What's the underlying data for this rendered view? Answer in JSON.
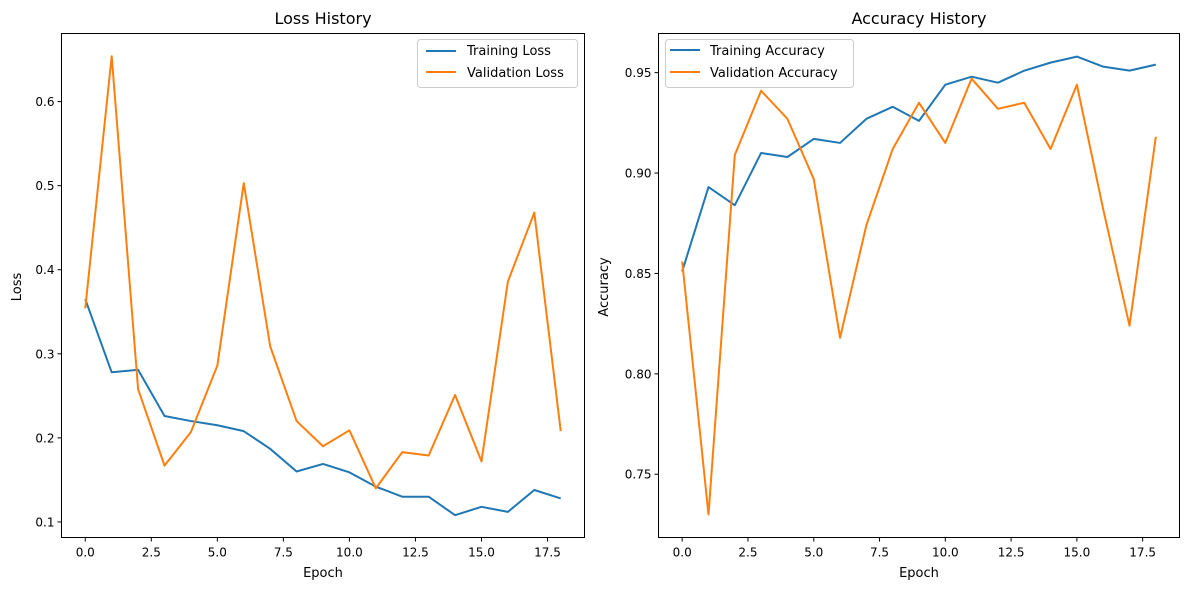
{
  "chart_data": [
    {
      "type": "line",
      "title": "Loss History",
      "xlabel": "Epoch",
      "ylabel": "Loss",
      "xlim": [
        -0.9,
        18.9
      ],
      "ylim": [
        0.0815,
        0.681
      ],
      "xticks": [
        0.0,
        2.5,
        5.0,
        7.5,
        10.0,
        12.5,
        15.0,
        17.5
      ],
      "xtick_labels": [
        "0.0",
        "2.5",
        "5.0",
        "7.5",
        "10.0",
        "12.5",
        "15.0",
        "17.5"
      ],
      "yticks": [
        0.1,
        0.2,
        0.3,
        0.4,
        0.5,
        0.6
      ],
      "ytick_labels": [
        "0.1",
        "0.2",
        "0.3",
        "0.4",
        "0.5",
        "0.6"
      ],
      "grid": false,
      "legend": "top-right",
      "x": [
        0,
        1,
        2,
        3,
        4,
        5,
        6,
        7,
        8,
        9,
        10,
        11,
        12,
        13,
        14,
        15,
        16,
        17,
        18
      ],
      "series": [
        {
          "name": "Training Loss",
          "color": "#1f77b4",
          "values": [
            0.365,
            0.278,
            0.281,
            0.226,
            0.22,
            0.215,
            0.208,
            0.187,
            0.16,
            0.169,
            0.159,
            0.142,
            0.13,
            0.13,
            0.108,
            0.118,
            0.112,
            0.138,
            0.128
          ]
        },
        {
          "name": "Validation Loss",
          "color": "#ff7f0e",
          "values": [
            0.354,
            0.654,
            0.258,
            0.167,
            0.207,
            0.286,
            0.503,
            0.309,
            0.22,
            0.19,
            0.209,
            0.14,
            0.183,
            0.179,
            0.251,
            0.172,
            0.386,
            0.468,
            0.208
          ]
        }
      ]
    },
    {
      "type": "line",
      "title": "Accuracy History",
      "xlabel": "Epoch",
      "ylabel": "Accuracy",
      "xlim": [
        -0.9,
        18.9
      ],
      "ylim": [
        0.7185,
        0.9695
      ],
      "xticks": [
        0.0,
        2.5,
        5.0,
        7.5,
        10.0,
        12.5,
        15.0,
        17.5
      ],
      "xtick_labels": [
        "0.0",
        "2.5",
        "5.0",
        "7.5",
        "10.0",
        "12.5",
        "15.0",
        "17.5"
      ],
      "yticks": [
        0.75,
        0.8,
        0.85,
        0.9,
        0.95
      ],
      "ytick_labels": [
        "0.75",
        "0.80",
        "0.85",
        "0.90",
        "0.95"
      ],
      "grid": false,
      "legend": "top-left",
      "x": [
        0,
        1,
        2,
        3,
        4,
        5,
        6,
        7,
        8,
        9,
        10,
        11,
        12,
        13,
        14,
        15,
        16,
        17,
        18
      ],
      "series": [
        {
          "name": "Training Accuracy",
          "color": "#1f77b4",
          "values": [
            0.851,
            0.893,
            0.884,
            0.91,
            0.908,
            0.917,
            0.915,
            0.927,
            0.933,
            0.926,
            0.944,
            0.948,
            0.945,
            0.951,
            0.955,
            0.958,
            0.953,
            0.951,
            0.954
          ]
        },
        {
          "name": "Validation Accuracy",
          "color": "#ff7f0e",
          "values": [
            0.856,
            0.73,
            0.909,
            0.941,
            0.927,
            0.897,
            0.818,
            0.874,
            0.912,
            0.935,
            0.915,
            0.947,
            0.932,
            0.935,
            0.912,
            0.944,
            0.882,
            0.824,
            0.918
          ]
        }
      ]
    }
  ]
}
